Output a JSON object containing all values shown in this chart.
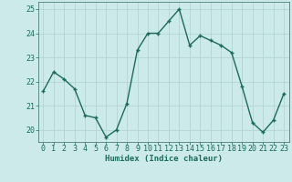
{
  "x": [
    0,
    1,
    2,
    3,
    4,
    5,
    6,
    7,
    8,
    9,
    10,
    11,
    12,
    13,
    14,
    15,
    16,
    17,
    18,
    19,
    20,
    21,
    22,
    23
  ],
  "y": [
    21.6,
    22.4,
    22.1,
    21.7,
    20.6,
    20.5,
    19.7,
    20.0,
    21.1,
    23.3,
    24.0,
    24.0,
    24.5,
    25.0,
    23.5,
    23.9,
    23.7,
    23.5,
    23.2,
    21.8,
    20.3,
    19.9,
    20.4,
    21.5
  ],
  "line_color": "#1a6b5a",
  "marker": "+",
  "marker_size": 3.5,
  "bg_color": "#cceaea",
  "grid_color": "#b0d0d0",
  "grid_color_minor": "#c8e4e4",
  "xlabel": "Humidex (Indice chaleur)",
  "ylim": [
    19.5,
    25.3
  ],
  "xlim": [
    -0.5,
    23.5
  ],
  "yticks": [
    20,
    21,
    22,
    23,
    24,
    25
  ],
  "xticks": [
    0,
    1,
    2,
    3,
    4,
    5,
    6,
    7,
    8,
    9,
    10,
    11,
    12,
    13,
    14,
    15,
    16,
    17,
    18,
    19,
    20,
    21,
    22,
    23
  ],
  "xlabel_fontsize": 6.5,
  "tick_fontsize": 6.0,
  "line_width": 1.0,
  "spine_color": "#336666"
}
